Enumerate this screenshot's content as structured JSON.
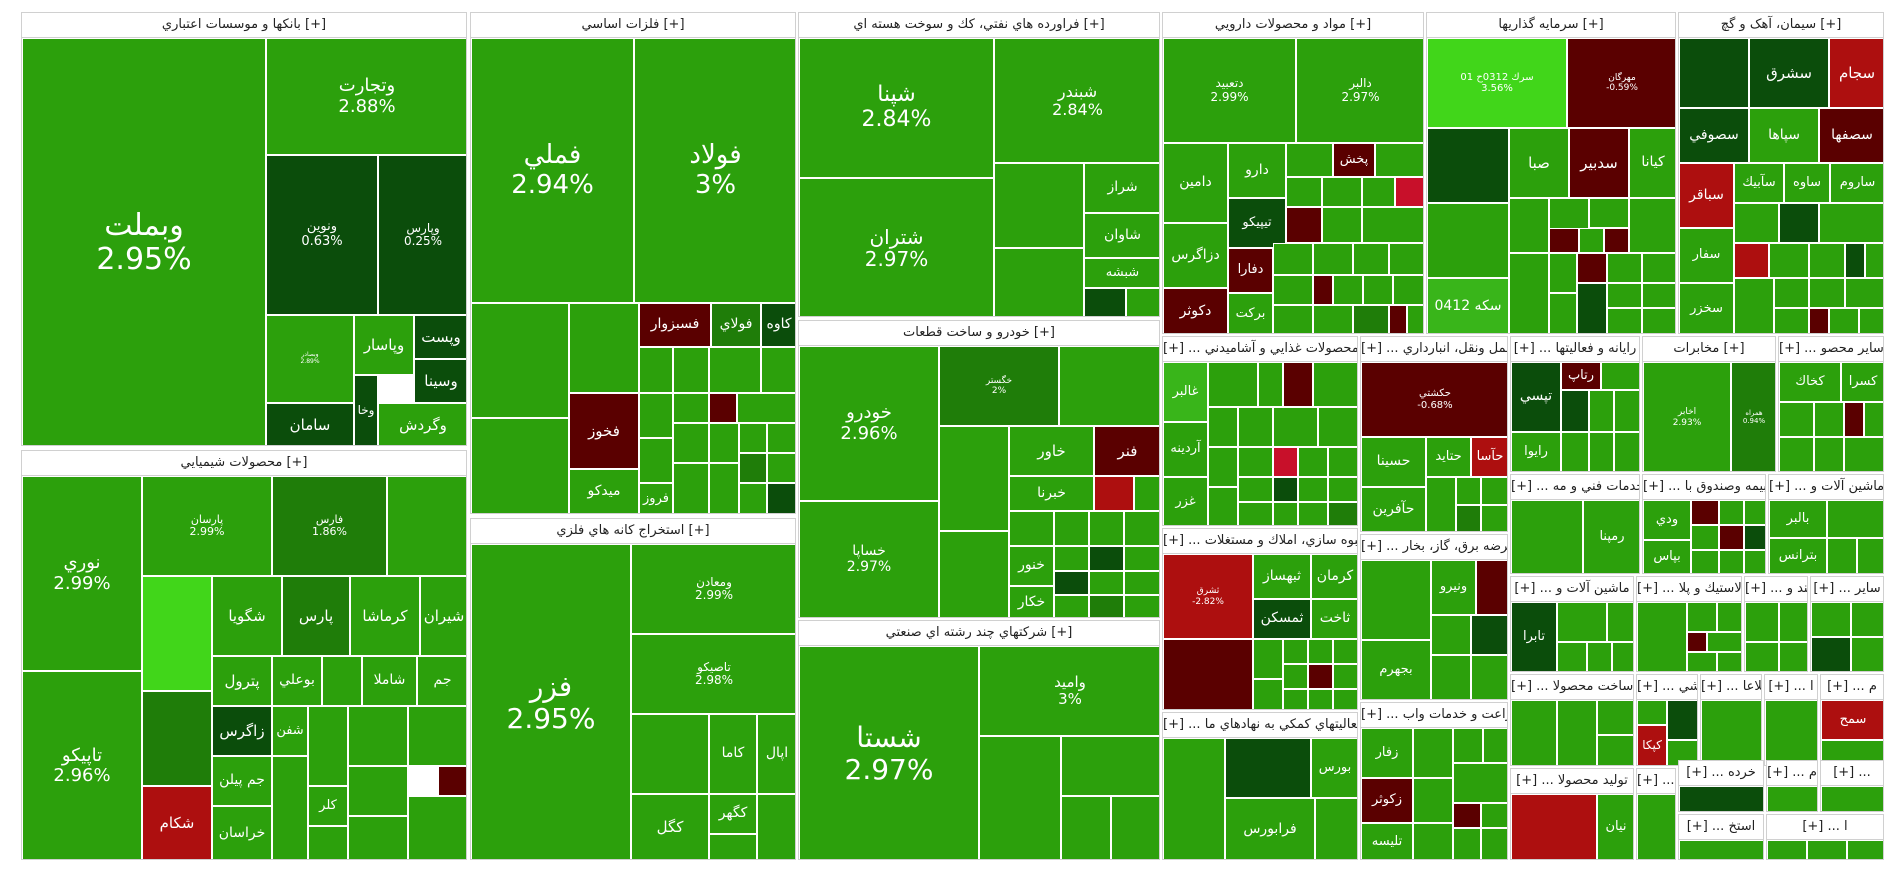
{
  "sectors": {
    "banks": {
      "title": "بانکها و موسسات اعتباري [+]"
    },
    "metals": {
      "title": "فلزات اساسي [+]"
    },
    "refinery": {
      "title": "فراورده هاي نفتي، كك و سوخت هسته اي [+]"
    },
    "pharma": {
      "title": "مواد و محصولات دارويي [+]"
    },
    "investment": {
      "title": "سرمايه گذاريها [+]"
    },
    "cement": {
      "title": "سيمان، آهک و گچ [+]"
    },
    "chemicals": {
      "title": "محصولات شيميايي [+]"
    },
    "mining": {
      "title": "استخراج کانه هاي فلزي [+]"
    },
    "auto": {
      "title": "خودرو و ساخت قطعات [+]"
    },
    "diversified": {
      "title": "شرکتهاي چند رشته اي صنعتي [+]"
    },
    "food": {
      "title": "[+] ... محصولات غذايي و آشاميدني"
    },
    "transport": {
      "title": "[+] ... حمل ونقل، انبارداري"
    },
    "computer": {
      "title": "[+] ... رايانه و فعاليتها"
    },
    "telecom": {
      "title": "مخابرات [+]"
    },
    "other_mining": {
      "title": "[+] ... ساير محصو"
    },
    "realestate": {
      "title": "[+] ... انبوه سازي، املاك و مستغلات"
    },
    "utilities": {
      "title": "[+] ... عرضه برق، گاز، بخار"
    },
    "services": {
      "title": "[+] ... خدمات فني و مه"
    },
    "insurance": {
      "title": "[+] ... بيمه وصندوق با"
    },
    "machinery": {
      "title": "[+] ... ماشين آلات و"
    },
    "machinery2": {
      "title": "[+] ... ماشين آلات و"
    },
    "rubber": {
      "title": "[+] ... لاستيك و پلا"
    },
    "sugar": {
      "title": "[+] ... قند و"
    },
    "other2": {
      "title": "[+] ... ساير"
    },
    "agri": {
      "title": "[+] ... زراعت و خدمات واب"
    },
    "finance_aux": {
      "title": "[+] ... فعاليتهاي كمكي به نهادهاي ما"
    },
    "products": {
      "title": "[+] ... ساخت محصولا"
    },
    "tiles": {
      "title": "[+] ... كاشي"
    },
    "info": {
      "title": "[+] ... اطلاعا"
    },
    "misc1": {
      "title": "[+] ... ا"
    },
    "misc2": {
      "title": "[+] ... م"
    },
    "product2": {
      "title": "[+] ... توليد محصولا"
    },
    "hotel": {
      "title": "[+] ... هتل و"
    },
    "retail": {
      "title": "[+] ... خرده"
    },
    "misc3": {
      "title": "[+] ... م"
    },
    "misc4": {
      "title": "[+] ..."
    },
    "misc5": {
      "title": "[+] ... استخ"
    },
    "misc6": {
      "title": "[+] ... ا"
    }
  },
  "tiles": {
    "vbmellat": {
      "name": "وبملت",
      "pct": "2.95%"
    },
    "vtejarat": {
      "name": "وتجارت",
      "pct": "2.88%"
    },
    "vnovin": {
      "name": "ونوين",
      "pct": "0.63%"
    },
    "vparsian": {
      "name": "وپارس",
      "pct": "0.25%"
    },
    "vpasar": {
      "name": "وپاسار"
    },
    "vpost": {
      "name": "وپست"
    },
    "vsina": {
      "name": "وسينا"
    },
    "vgardesh": {
      "name": "وگردش"
    },
    "saman": {
      "name": "سامان"
    },
    "vkha": {
      "name": "وخا"
    },
    "vomid": {
      "name": "وبصادر",
      "pct": "2.89%"
    },
    "fameli": {
      "name": "فملي",
      "pct": "2.94%"
    },
    "foolad": {
      "name": "فولاد",
      "pct": "3%"
    },
    "fesabzevar": {
      "name": "فسبزوار"
    },
    "fooladi": {
      "name": "فولاي"
    },
    "kaveh": {
      "name": "كاوه"
    },
    "fkhoz": {
      "name": "فخوز"
    },
    "fmidko": {
      "name": "ميدكو"
    },
    "faroz": {
      "name": "فروز"
    },
    "fzar": {
      "name": "فزر",
      "pct": "2.95%"
    },
    "vmaaden": {
      "name": "ومعادن",
      "pct": "2.99%"
    },
    "tasiko": {
      "name": "تاصيكو",
      "pct": "2.98%"
    },
    "kagol": {
      "name": "كگل"
    },
    "kama": {
      "name": "كاما"
    },
    "kgohar": {
      "name": "كگهر"
    },
    "apal": {
      "name": "اپال"
    },
    "shepna": {
      "name": "شپنا",
      "pct": "2.84%"
    },
    "shbandar": {
      "name": "شبندر",
      "pct": "2.84%"
    },
    "shetran": {
      "name": "شتران",
      "pct": "2.97%"
    },
    "shiraz": {
      "name": "شراز"
    },
    "shavan": {
      "name": "شاوان"
    },
    "shebsheh": {
      "name": "شبشه"
    },
    "khodro": {
      "name": "خودرو",
      "pct": "2.96%"
    },
    "khsapa": {
      "name": "خساپا",
      "pct": "2.97%"
    },
    "khgostar": {
      "name": "خگستر",
      "pct": "2%"
    },
    "khavar": {
      "name": "خاور"
    },
    "fanar": {
      "name": "فنر"
    },
    "khbahman": {
      "name": "خبرنا"
    },
    "khenor": {
      "name": "خنور"
    },
    "khakar": {
      "name": "خكار"
    },
    "shasta": {
      "name": "شستا",
      "pct": "2.97%"
    },
    "vamid": {
      "name": "واميد",
      "pct": "3%"
    },
    "dteyeb": {
      "name": "دتعبيد",
      "pct": "2.99%"
    },
    "dadra": {
      "name": "دالبر",
      "pct": "2.97%"
    },
    "darou": {
      "name": "دارو"
    },
    "damin": {
      "name": "دامين"
    },
    "pakhsh": {
      "name": "پخش"
    },
    "tipiko": {
      "name": "تيپيكو"
    },
    "dzagros": {
      "name": "دزاگرس"
    },
    "dfara": {
      "name": "دفارا"
    },
    "barakat": {
      "name": "بركت"
    },
    "dkosar": {
      "name": "دكوثر"
    },
    "sarvak": {
      "name": "سرك 0312ح 01",
      "pct": "3.56%"
    },
    "mehrgan": {
      "name": "مهرگان",
      "pct": "-0.59%"
    },
    "seke": {
      "name": "سكه 0412"
    },
    "saba": {
      "name": "صبا"
    },
    "sadbir": {
      "name": "سدبير"
    },
    "kian": {
      "name": "كيانا"
    },
    "sejam": {
      "name": "سجام"
    },
    "sshargh": {
      "name": "سشرق"
    },
    "ssofi": {
      "name": "سصوفي"
    },
    "sepaha": {
      "name": "سپاها"
    },
    "sesfaha": {
      "name": "سصفها"
    },
    "sbaqer": {
      "name": "سباقر"
    },
    "sabik": {
      "name": "سآبيك"
    },
    "saveh": {
      "name": "ساوه"
    },
    "sarum": {
      "name": "ساروم"
    },
    "sfar": {
      "name": "سفار"
    },
    "skhazar": {
      "name": "سخزر"
    },
    "noori": {
      "name": "نوري",
      "pct": "2.99%"
    },
    "tapiko": {
      "name": "تاپيكو",
      "pct": "2.96%"
    },
    "parsan": {
      "name": "پارسان",
      "pct": "2.99%"
    },
    "fars": {
      "name": "فارس",
      "pct": "1.86%"
    },
    "shgoya": {
      "name": "شگويا"
    },
    "pars": {
      "name": "پارس"
    },
    "kermasha": {
      "name": "كرماشا"
    },
    "shiran": {
      "name": "شيران"
    },
    "petrol": {
      "name": "پترول"
    },
    "bouali": {
      "name": "بوعلي"
    },
    "shamla": {
      "name": "شاملا"
    },
    "jam": {
      "name": "جم"
    },
    "zagros": {
      "name": "زاگرس"
    },
    "jampilen": {
      "name": "جم پيلن"
    },
    "shekam": {
      "name": "شكام"
    },
    "khorasan": {
      "name": "خراسان"
    },
    "shafan": {
      "name": "شفن"
    },
    "kalr": {
      "name": "كلر"
    },
    "ghaleb": {
      "name": "غالبر"
    },
    "ardine": {
      "name": "آردينه"
    },
    "ghzar": {
      "name": "غزر"
    },
    "haftashi": {
      "name": "حكشتي",
      "pct": "-0.68%"
    },
    "hasina": {
      "name": "حسينا"
    },
    "hataid": {
      "name": "حتايد"
    },
    "hasa": {
      "name": "حآسا"
    },
    "hafarin": {
      "name": "حآفرين"
    },
    "tisi": {
      "name": "تپسي"
    },
    "retap": {
      "name": "رتاپ"
    },
    "rayva": {
      "name": "رايوا"
    },
    "akhaber": {
      "name": "اخابر",
      "pct": "2.93%"
    },
    "hamrah": {
      "name": "همراه",
      "pct": "0.94%"
    },
    "kekhak": {
      "name": "كخاك"
    },
    "kasra": {
      "name": "كسرا"
    },
    "sheshragh": {
      "name": "ثشرق",
      "pct": "-2.82%"
    },
    "sbahsaz": {
      "name": "ثبهساز"
    },
    "kerman": {
      "name": "كرمان"
    },
    "smaskan": {
      "name": "ثمسكن"
    },
    "takhat": {
      "name": "ثاخت"
    },
    "banro": {
      "name": "ونيرو"
    },
    "bjahrom": {
      "name": "بجهرم"
    },
    "rampna": {
      "name": "رمپنا"
    },
    "vodi": {
      "name": "ودي"
    },
    "vbias": {
      "name": "بپاس"
    },
    "balbor": {
      "name": "بالبر"
    },
    "btranes": {
      "name": "بترانس"
    },
    "tabra": {
      "name": "تابرا"
    },
    "bourse": {
      "name": "بورس"
    },
    "farabourse": {
      "name": "فرابورس"
    },
    "zkosar": {
      "name": "زكوثر"
    },
    "zfar": {
      "name": "زفار"
    },
    "tlisa": {
      "name": "تليسه"
    },
    "nayan": {
      "name": "نيان"
    },
    "kaka": {
      "name": "كپكا"
    },
    "smed": {
      "name": "سمح"
    }
  }
}
